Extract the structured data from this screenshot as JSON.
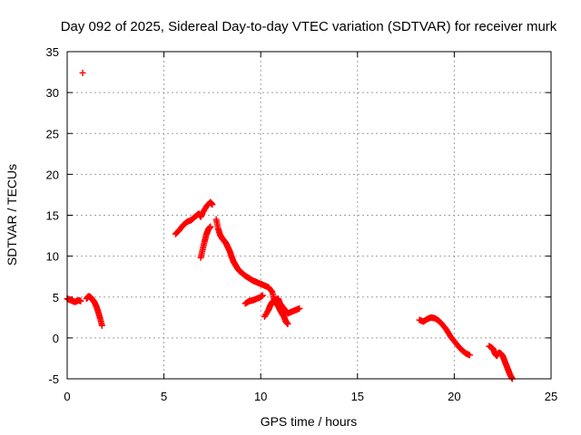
{
  "chart_data": {
    "type": "scatter",
    "title": "Day 092 of 2025, Sidereal Day-to-day VTEC variation (SDTVAR) for receiver murk",
    "xlabel": "GPS time / hours",
    "ylabel": "SDTVAR / TECUs",
    "xlim": [
      0,
      25
    ],
    "ylim": [
      -5,
      35
    ],
    "xticks": [
      0,
      5,
      10,
      15,
      20,
      25
    ],
    "yticks": [
      -5,
      0,
      5,
      10,
      15,
      20,
      25,
      30,
      35
    ],
    "xtick_labels": [
      "0",
      "5",
      "10",
      "15",
      "20",
      "25"
    ],
    "ytick_labels": [
      "-5",
      "0",
      "5",
      "10",
      "15",
      "20",
      "25",
      "30",
      "35"
    ],
    "grid": true,
    "marker": "+",
    "color": "#ff0000",
    "series": [
      {
        "name": "SDTVAR",
        "segments": [
          [
            [
              0.0,
              4.8
            ],
            [
              0.1,
              4.7
            ],
            [
              0.2,
              4.6
            ],
            [
              0.3,
              4.5
            ],
            [
              0.4,
              4.4
            ],
            [
              0.5,
              4.5
            ],
            [
              0.6,
              4.6
            ],
            [
              0.7,
              4.5
            ]
          ],
          [
            [
              0.8,
              32.4
            ]
          ],
          [
            [
              1.0,
              4.8
            ],
            [
              1.1,
              5.1
            ],
            [
              1.2,
              5.0
            ],
            [
              1.3,
              4.7
            ],
            [
              1.4,
              4.4
            ],
            [
              1.5,
              3.9
            ],
            [
              1.6,
              3.2
            ],
            [
              1.7,
              2.4
            ],
            [
              1.8,
              1.5
            ]
          ],
          [
            [
              5.6,
              12.7
            ],
            [
              5.8,
              13.2
            ],
            [
              6.0,
              13.8
            ],
            [
              6.2,
              14.2
            ],
            [
              6.4,
              14.4
            ],
            [
              6.6,
              14.8
            ],
            [
              6.8,
              15.2
            ],
            [
              6.9,
              14.8
            ],
            [
              7.0,
              15.3
            ],
            [
              7.2,
              16.1
            ],
            [
              7.4,
              16.6
            ],
            [
              7.5,
              16.3
            ]
          ],
          [
            [
              6.9,
              9.8
            ],
            [
              7.0,
              10.8
            ],
            [
              7.1,
              11.8
            ],
            [
              7.2,
              12.7
            ],
            [
              7.3,
              13.3
            ],
            [
              7.4,
              13.6
            ]
          ],
          [
            [
              7.7,
              14.5
            ],
            [
              7.8,
              13.4
            ],
            [
              7.9,
              12.6
            ],
            [
              8.0,
              12.2
            ],
            [
              8.1,
              11.9
            ],
            [
              8.2,
              11.6
            ],
            [
              8.3,
              11.1
            ],
            [
              8.4,
              10.6
            ],
            [
              8.5,
              9.9
            ],
            [
              8.6,
              9.3
            ],
            [
              8.7,
              8.9
            ],
            [
              8.8,
              8.5
            ],
            [
              8.9,
              8.2
            ],
            [
              9.0,
              8.0
            ],
            [
              9.2,
              7.6
            ],
            [
              9.4,
              7.3
            ],
            [
              9.6,
              7.0
            ],
            [
              9.8,
              6.8
            ],
            [
              10.0,
              6.6
            ],
            [
              10.2,
              6.4
            ],
            [
              10.4,
              6.2
            ],
            [
              10.6,
              5.6
            ],
            [
              10.7,
              4.6
            ],
            [
              10.8,
              4.2
            ],
            [
              10.9,
              3.9
            ],
            [
              11.0,
              3.4
            ],
            [
              11.1,
              3.0
            ],
            [
              11.2,
              2.6
            ],
            [
              11.3,
              2.0
            ],
            [
              11.4,
              1.7
            ]
          ],
          [
            [
              9.2,
              4.2
            ],
            [
              9.4,
              4.5
            ],
            [
              9.6,
              4.6
            ],
            [
              9.8,
              4.8
            ],
            [
              10.0,
              5.0
            ],
            [
              10.1,
              5.2
            ]
          ],
          [
            [
              10.2,
              2.6
            ],
            [
              10.4,
              3.4
            ],
            [
              10.5,
              4.0
            ],
            [
              10.6,
              4.4
            ],
            [
              10.7,
              4.6
            ],
            [
              10.9,
              4.8
            ],
            [
              11.0,
              4.2
            ],
            [
              11.2,
              3.6
            ],
            [
              11.4,
              3.0
            ],
            [
              11.6,
              3.2
            ],
            [
              11.8,
              3.4
            ],
            [
              12.0,
              3.6
            ]
          ],
          [
            [
              18.2,
              2.2
            ],
            [
              18.4,
              2.0
            ],
            [
              18.6,
              2.3
            ],
            [
              18.8,
              2.5
            ],
            [
              19.0,
              2.4
            ],
            [
              19.2,
              2.1
            ],
            [
              19.4,
              1.6
            ],
            [
              19.6,
              1.0
            ],
            [
              19.8,
              0.2
            ],
            [
              20.0,
              -0.4
            ],
            [
              20.2,
              -1.0
            ],
            [
              20.4,
              -1.5
            ],
            [
              20.6,
              -1.9
            ],
            [
              20.8,
              -2.1
            ]
          ],
          [
            [
              21.8,
              -1.0
            ],
            [
              22.0,
              -1.3
            ],
            [
              22.1,
              -1.9
            ],
            [
              22.2,
              -2.2
            ],
            [
              22.3,
              -1.8
            ],
            [
              22.4,
              -1.9
            ],
            [
              22.5,
              -2.2
            ],
            [
              22.6,
              -2.8
            ],
            [
              22.7,
              -3.4
            ],
            [
              22.8,
              -4.0
            ],
            [
              22.9,
              -4.6
            ],
            [
              23.0,
              -5.0
            ]
          ]
        ]
      }
    ]
  }
}
